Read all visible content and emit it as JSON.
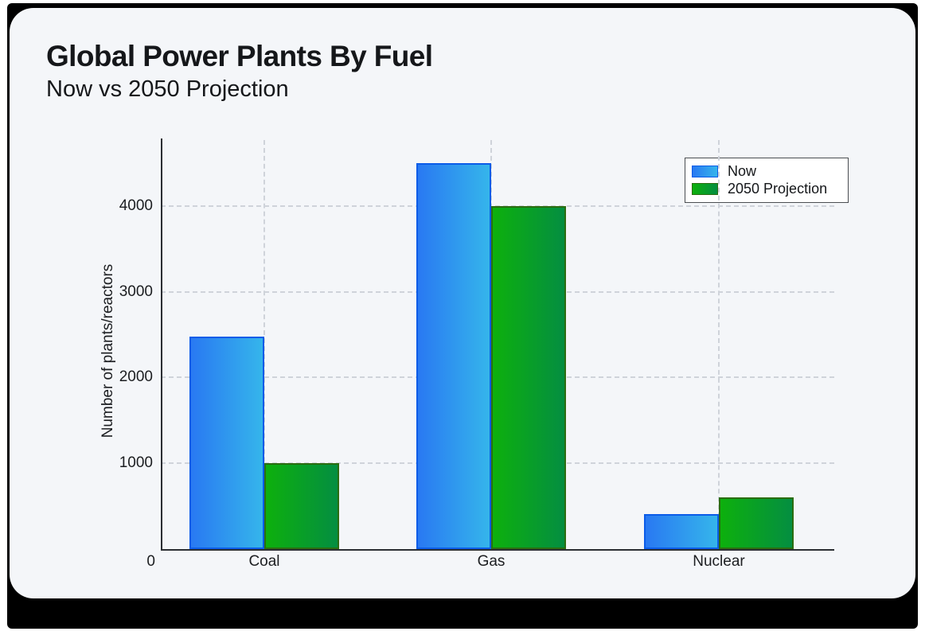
{
  "chart_data": {
    "type": "bar",
    "title": "Global Power Plants By Fuel",
    "subtitle": "Now vs 2050 Projection",
    "categories": [
      "Coal",
      "Gas",
      "Nuclear"
    ],
    "series": [
      {
        "name": "Now",
        "values": [
          2480,
          4500,
          410
        ],
        "fill_start": "#2979f2",
        "fill_end": "#35b5eb",
        "border": "#0b5ce8"
      },
      {
        "name": "2050 Projection",
        "values": [
          1000,
          4000,
          600
        ],
        "fill_start": "#0db00d",
        "fill_end": "#048e41",
        "border": "#2a6d10"
      }
    ],
    "xlabel": "",
    "ylabel": "Number of plants/reactors",
    "yticks": [
      1000,
      2000,
      3000,
      4000
    ],
    "origin_label": "0",
    "ylim": [
      0,
      4750
    ],
    "grid": "dashed",
    "legend_position": "top-right",
    "legend": [
      "Now",
      "2050 Projection"
    ]
  },
  "colors": {
    "card_background": "#f4f6f9",
    "frame": "#000000",
    "axis": "#2b2e33",
    "gridline": "#cfd3da",
    "text": "#15171a"
  }
}
